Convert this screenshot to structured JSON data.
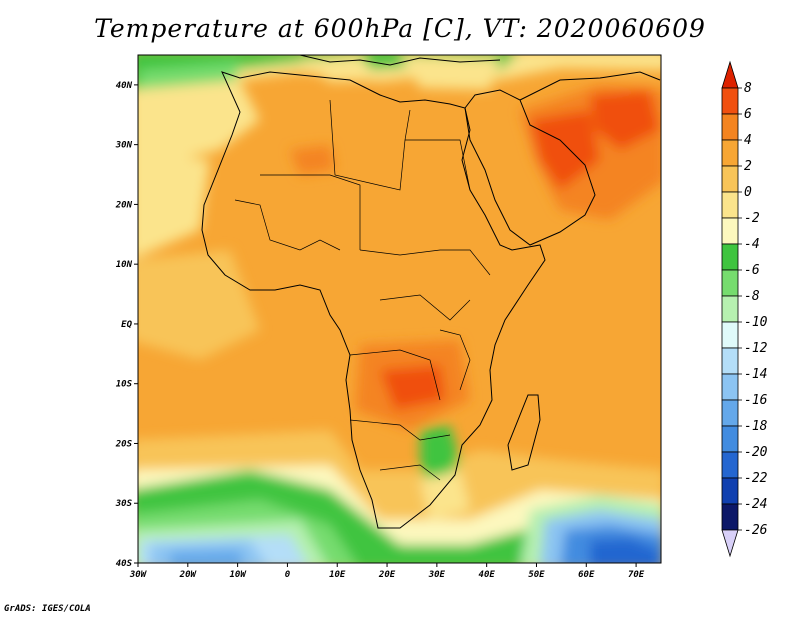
{
  "title": "Temperature at 600hPa [C], VT: 2020060609",
  "credit": "GrADS: IGES/COLA",
  "map": {
    "lon_range": [
      -30,
      75
    ],
    "lat_range": [
      -40,
      45
    ],
    "lon_ticks": [
      {
        "value": -30,
        "label": "30W"
      },
      {
        "value": -20,
        "label": "20W"
      },
      {
        "value": -10,
        "label": "10W"
      },
      {
        "value": 0,
        "label": "0"
      },
      {
        "value": 10,
        "label": "10E"
      },
      {
        "value": 20,
        "label": "20E"
      },
      {
        "value": 30,
        "label": "30E"
      },
      {
        "value": 40,
        "label": "40E"
      },
      {
        "value": 50,
        "label": "50E"
      },
      {
        "value": 60,
        "label": "60E"
      },
      {
        "value": 70,
        "label": "70E"
      }
    ],
    "lat_ticks": [
      {
        "value": 40,
        "label": "40N"
      },
      {
        "value": 30,
        "label": "30N"
      },
      {
        "value": 20,
        "label": "20N"
      },
      {
        "value": 10,
        "label": "10N"
      },
      {
        "value": 0,
        "label": "EQ"
      },
      {
        "value": -10,
        "label": "10S"
      },
      {
        "value": -20,
        "label": "20S"
      },
      {
        "value": -30,
        "label": "30S"
      },
      {
        "value": -40,
        "label": "40S"
      }
    ]
  },
  "colorbar": {
    "labels": [
      "8",
      "6",
      "4",
      "2",
      "0",
      "-2",
      "-4",
      "-6",
      "-8",
      "-10",
      "-12",
      "-14",
      "-16",
      "-18",
      "-20",
      "-22",
      "-24",
      "-26"
    ],
    "colors": [
      "#dd2200",
      "#f05010",
      "#f48420",
      "#f7a634",
      "#f8c458",
      "#fbe48c",
      "#fdf8be",
      "#3fc43f",
      "#76dc6e",
      "#b6f0b0",
      "#e0fafa",
      "#b4def8",
      "#8cc4f2",
      "#64a8ea",
      "#428ce0",
      "#2466d0",
      "#1040b0",
      "#0c1868",
      "#d8d0f8"
    ]
  }
}
